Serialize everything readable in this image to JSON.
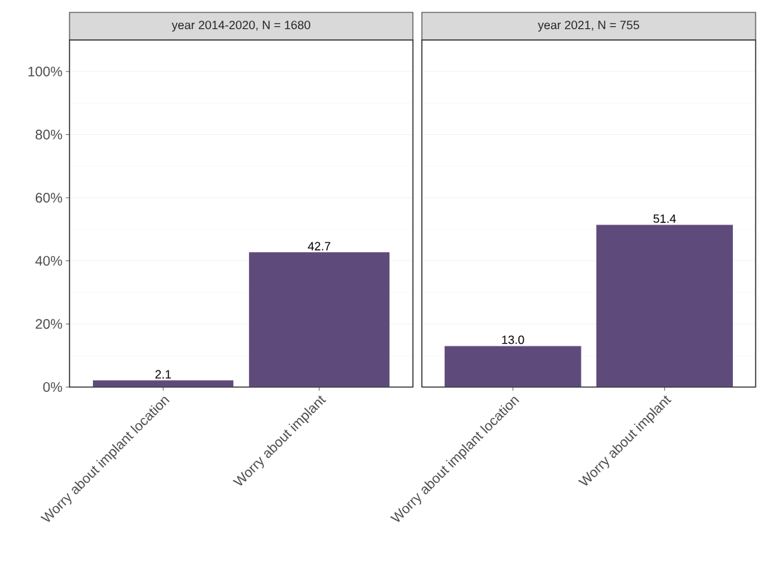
{
  "chart_data": [
    {
      "type": "bar",
      "title": "year 2014-2020, N = 1680",
      "categories": [
        "Worry about implant location",
        "Worry about implant"
      ],
      "values": [
        2.1,
        42.7
      ],
      "color": "#5f4b7b",
      "value_labels": [
        "2.1",
        "42.7"
      ],
      "ylim": [
        0,
        110
      ],
      "yticks": [
        {
          "value": 0,
          "label": "0%"
        },
        {
          "value": 20,
          "label": "20%"
        },
        {
          "value": 40,
          "label": "40%"
        },
        {
          "value": 60,
          "label": "60%"
        },
        {
          "value": 80,
          "label": "80%"
        },
        {
          "value": 100,
          "label": "100%"
        }
      ],
      "grid": "y"
    },
    {
      "type": "bar",
      "title": "year 2021, N = 755",
      "categories": [
        "Worry about implant location",
        "Worry about implant"
      ],
      "values": [
        13.0,
        51.4
      ],
      "color": "#5f4b7b",
      "value_labels": [
        "13.0",
        "51.4"
      ],
      "ylim": [
        0,
        110
      ],
      "yticks": [
        {
          "value": 0,
          "label": null
        },
        {
          "value": 20,
          "label": null
        },
        {
          "value": 40,
          "label": null
        },
        {
          "value": 60,
          "label": null
        },
        {
          "value": 80,
          "label": null
        },
        {
          "value": 100,
          "label": null
        }
      ],
      "grid": "y",
      "tick_labels": "x"
    }
  ]
}
